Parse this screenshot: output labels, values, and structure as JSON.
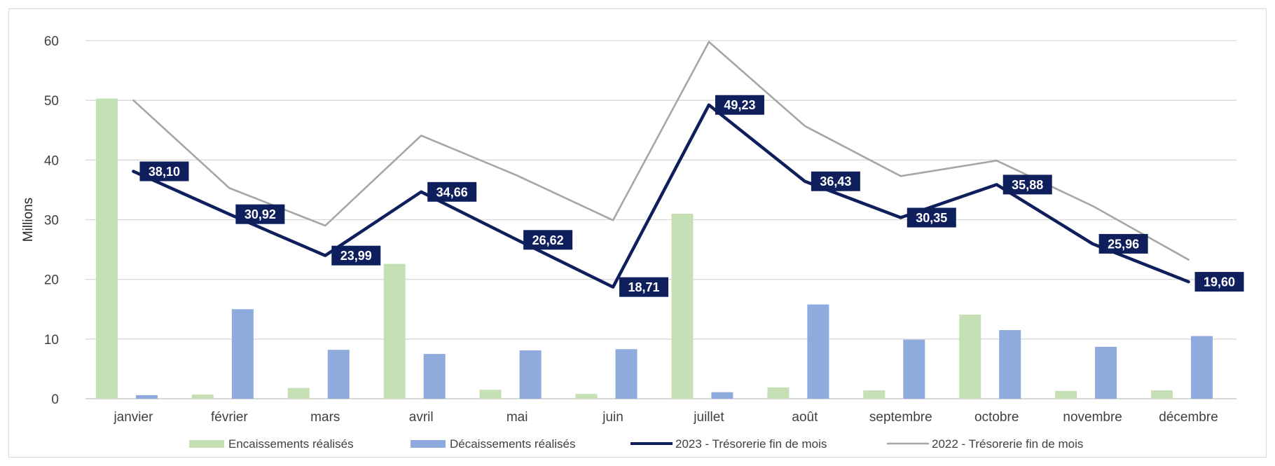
{
  "chart_data": {
    "type": "bar",
    "ylabel": "Millions",
    "ylim": [
      0,
      60
    ],
    "yticks": [
      0,
      10,
      20,
      30,
      40,
      50,
      60
    ],
    "grid": true,
    "legend_position": "bottom",
    "categories": [
      "janvier",
      "février",
      "mars",
      "avril",
      "mai",
      "juin",
      "juillet",
      "août",
      "septembre",
      "octobre",
      "novembre",
      "décembre"
    ],
    "series": [
      {
        "name": "Encaissements réalisés",
        "kind": "bar",
        "color": "#c5e0b4",
        "values": [
          50.3,
          0.7,
          1.8,
          22.6,
          1.5,
          0.8,
          31.0,
          1.9,
          1.4,
          14.1,
          1.3,
          1.4
        ]
      },
      {
        "name": "Décaissements réalisés",
        "kind": "bar",
        "color": "#8faadc",
        "values": [
          0.6,
          15.0,
          8.2,
          7.5,
          8.1,
          8.3,
          1.1,
          15.8,
          9.9,
          11.5,
          8.7,
          10.5
        ]
      },
      {
        "name": "2023 - Trésorerie fin de mois",
        "kind": "line",
        "color": "#0f1f5c",
        "values": [
          38.1,
          30.92,
          23.99,
          34.66,
          26.62,
          18.71,
          49.23,
          36.43,
          30.35,
          35.88,
          25.96,
          19.6
        ],
        "labels": [
          "38,10",
          "30,92",
          "23,99",
          "34,66",
          "26,62",
          "18,71",
          "49,23",
          "36,43",
          "30,35",
          "35,88",
          "25,96",
          "19,60"
        ]
      },
      {
        "name": "2022 - Trésorerie fin de mois",
        "kind": "line",
        "color": "#a6a6a6",
        "values": [
          50.0,
          35.3,
          29.0,
          44.1,
          37.4,
          29.9,
          59.8,
          45.7,
          37.3,
          39.9,
          32.3,
          23.3
        ]
      }
    ]
  }
}
